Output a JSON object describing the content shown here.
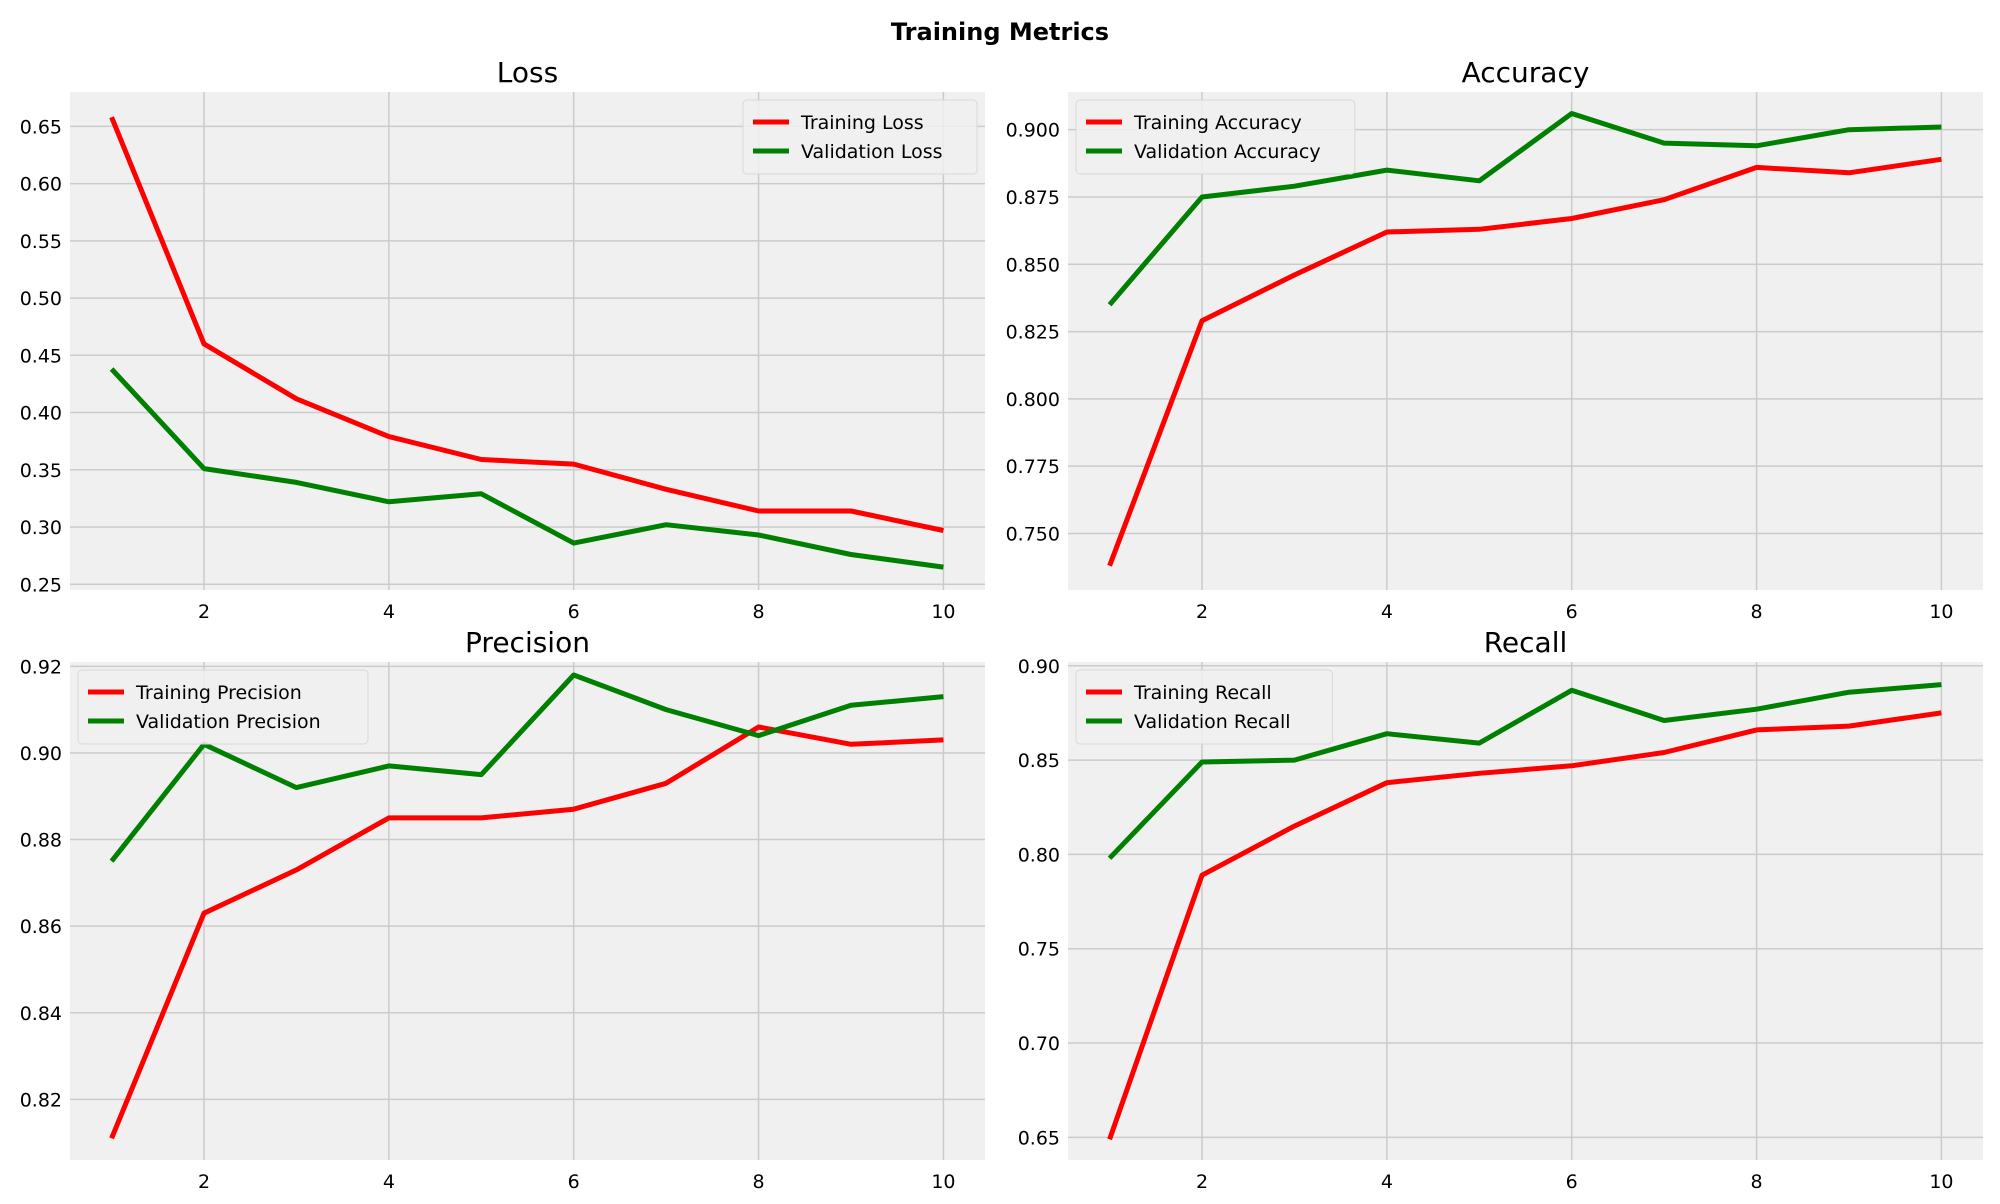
{
  "figure": {
    "title": "Training Metrics"
  },
  "colors": {
    "training": "#ff0000",
    "validation": "#008000",
    "panel_bg": "#f0f0f0",
    "grid": "#cbcbcb"
  },
  "chart_data": [
    {
      "type": "line",
      "title": "Loss",
      "xlabel": "",
      "ylabel": "",
      "x": [
        1,
        2,
        3,
        4,
        5,
        6,
        7,
        8,
        9,
        10
      ],
      "xticks": [
        2,
        4,
        6,
        8,
        10
      ],
      "xlim": [
        0.55,
        10.45
      ],
      "ylim": [
        0.245,
        0.68
      ],
      "yticks": [
        0.25,
        0.3,
        0.35,
        0.4,
        0.45,
        0.5,
        0.55,
        0.6,
        0.65
      ],
      "ytick_labels": [
        "0.25",
        "0.30",
        "0.35",
        "0.40",
        "0.45",
        "0.50",
        "0.55",
        "0.60",
        "0.65"
      ],
      "legend": "upper right",
      "grid": true,
      "series": [
        {
          "name": "Training Loss",
          "color": "#ff0000",
          "values": [
            0.658,
            0.46,
            0.412,
            0.379,
            0.359,
            0.355,
            0.333,
            0.314,
            0.314,
            0.297
          ]
        },
        {
          "name": "Validation Loss",
          "color": "#008000",
          "values": [
            0.438,
            0.351,
            0.339,
            0.322,
            0.329,
            0.286,
            0.302,
            0.293,
            0.276,
            0.265
          ]
        }
      ]
    },
    {
      "type": "line",
      "title": "Accuracy",
      "xlabel": "",
      "ylabel": "",
      "x": [
        1,
        2,
        3,
        4,
        5,
        6,
        7,
        8,
        9,
        10
      ],
      "xticks": [
        2,
        4,
        6,
        8,
        10
      ],
      "xlim": [
        0.55,
        10.45
      ],
      "ylim": [
        0.729,
        0.914
      ],
      "yticks": [
        0.75,
        0.775,
        0.8,
        0.825,
        0.85,
        0.875,
        0.9
      ],
      "ytick_labels": [
        "0.750",
        "0.775",
        "0.800",
        "0.825",
        "0.850",
        "0.875",
        "0.900"
      ],
      "legend": "upper left",
      "grid": true,
      "series": [
        {
          "name": "Training Accuracy",
          "color": "#ff0000",
          "values": [
            0.738,
            0.829,
            0.846,
            0.862,
            0.863,
            0.867,
            0.874,
            0.886,
            0.884,
            0.889
          ]
        },
        {
          "name": "Validation Accuracy",
          "color": "#008000",
          "values": [
            0.835,
            0.875,
            0.879,
            0.885,
            0.881,
            0.906,
            0.895,
            0.894,
            0.9,
            0.901
          ]
        }
      ]
    },
    {
      "type": "line",
      "title": "Precision",
      "xlabel": "",
      "ylabel": "",
      "x": [
        1,
        2,
        3,
        4,
        5,
        6,
        7,
        8,
        9,
        10
      ],
      "xticks": [
        2,
        4,
        6,
        8,
        10
      ],
      "xlim": [
        0.55,
        10.45
      ],
      "ylim": [
        0.806,
        0.921
      ],
      "yticks": [
        0.82,
        0.84,
        0.86,
        0.88,
        0.9,
        0.92
      ],
      "ytick_labels": [
        "0.82",
        "0.84",
        "0.86",
        "0.88",
        "0.90",
        "0.92"
      ],
      "legend": "upper left",
      "grid": true,
      "series": [
        {
          "name": "Training Precision",
          "color": "#ff0000",
          "values": [
            0.811,
            0.863,
            0.873,
            0.885,
            0.885,
            0.887,
            0.893,
            0.906,
            0.902,
            0.903
          ]
        },
        {
          "name": "Validation Precision",
          "color": "#008000",
          "values": [
            0.875,
            0.902,
            0.892,
            0.897,
            0.895,
            0.918,
            0.91,
            0.904,
            0.911,
            0.913
          ]
        }
      ]
    },
    {
      "type": "line",
      "title": "Recall",
      "xlabel": "",
      "ylabel": "",
      "x": [
        1,
        2,
        3,
        4,
        5,
        6,
        7,
        8,
        9,
        10
      ],
      "xticks": [
        2,
        4,
        6,
        8,
        10
      ],
      "xlim": [
        0.55,
        10.45
      ],
      "ylim": [
        0.638,
        0.902
      ],
      "yticks": [
        0.65,
        0.7,
        0.75,
        0.8,
        0.85,
        0.9
      ],
      "ytick_labels": [
        "0.65",
        "0.70",
        "0.75",
        "0.80",
        "0.85",
        "0.90"
      ],
      "legend": "upper left",
      "grid": true,
      "series": [
        {
          "name": "Training Recall",
          "color": "#ff0000",
          "values": [
            0.649,
            0.789,
            0.815,
            0.838,
            0.843,
            0.847,
            0.854,
            0.866,
            0.868,
            0.875
          ]
        },
        {
          "name": "Validation Recall",
          "color": "#008000",
          "values": [
            0.798,
            0.849,
            0.85,
            0.864,
            0.859,
            0.887,
            0.871,
            0.877,
            0.886,
            0.89
          ]
        }
      ]
    }
  ]
}
